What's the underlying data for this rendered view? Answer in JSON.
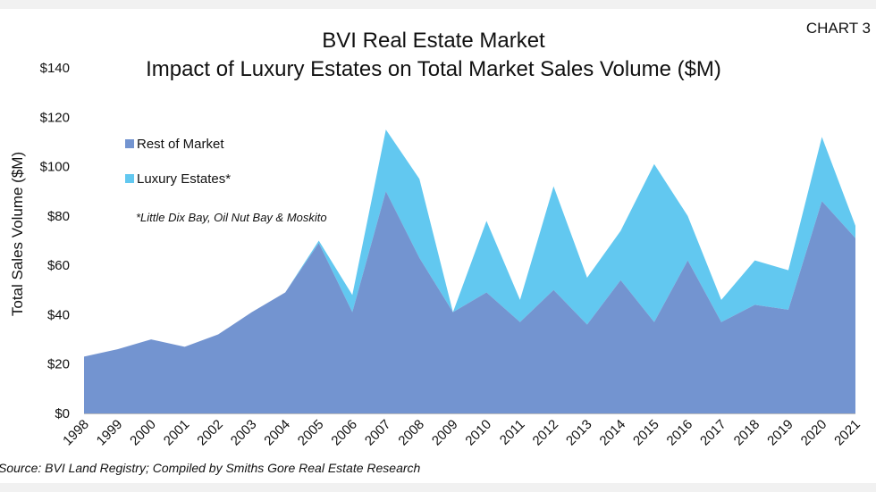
{
  "chart_no": "CHART 3",
  "title_line1": "BVI Real Estate Market",
  "title_line2": "Impact of Luxury Estates on Total Market Sales Volume ($M)",
  "source": "Source: BVI Land Registry; Compiled by Smiths Gore Real Estate Research",
  "legend_note": "*Little Dix Bay, Oil Nut Bay & Moskito",
  "colors": {
    "rest": "#7394d0",
    "luxury": "#62c8f0"
  },
  "chart_data": {
    "type": "area",
    "stacked": true,
    "categories": [
      "1998",
      "1999",
      "2000",
      "2001",
      "2002",
      "2003",
      "2004",
      "2005",
      "2006",
      "2007",
      "2008",
      "2009",
      "2010",
      "2011",
      "2012",
      "2013",
      "2014",
      "2015",
      "2016",
      "2017",
      "2018",
      "2019",
      "2020",
      "2021"
    ],
    "series": [
      {
        "name": "Rest of Market",
        "values": [
          23,
          26,
          30,
          27,
          32,
          41,
          49,
          69,
          41,
          90,
          63,
          41,
          49,
          37,
          50,
          36,
          54,
          37,
          62,
          37,
          44,
          42,
          86,
          71
        ]
      },
      {
        "name": "Luxury Estates*",
        "values": [
          0,
          0,
          0,
          0,
          0,
          0,
          0,
          1,
          7,
          25,
          32,
          0,
          29,
          9,
          42,
          19,
          20,
          64,
          18,
          9,
          18,
          16,
          26,
          5
        ]
      }
    ],
    "ylabel": "Total Sales Volume ($M)",
    "ylim": [
      0,
      140
    ],
    "yticks": [
      "$0",
      "$20",
      "$40",
      "$60",
      "$80",
      "$100",
      "$120",
      "$140"
    ],
    "legend_position": "top-left"
  }
}
